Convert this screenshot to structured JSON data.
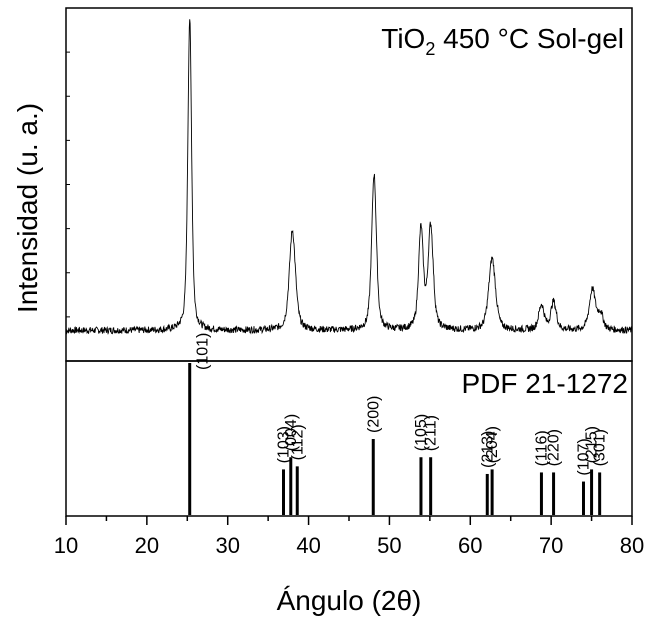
{
  "chart_data": {
    "type": "line",
    "xlabel": "Ángulo (2θ)",
    "ylabel": "Intensidad (u. a.)",
    "xlim": [
      10,
      80
    ],
    "x_ticks": [
      "10",
      "20",
      "30",
      "40",
      "50",
      "60",
      "70",
      "80"
    ],
    "grid": false,
    "top_panel": {
      "label_main": "TiO",
      "label_sub": "2",
      "label_rest": " 450 °C Sol-gel",
      "series": {
        "baseline": 0.05,
        "peaks": [
          {
            "x": 25.3,
            "height": 1.0,
            "width": 0.28
          },
          {
            "x": 38.0,
            "height": 0.32,
            "width": 0.45
          },
          {
            "x": 48.1,
            "height": 0.5,
            "width": 0.35
          },
          {
            "x": 53.9,
            "height": 0.32,
            "width": 0.35
          },
          {
            "x": 55.1,
            "height": 0.33,
            "width": 0.38
          },
          {
            "x": 62.7,
            "height": 0.23,
            "width": 0.5
          },
          {
            "x": 68.8,
            "height": 0.08,
            "width": 0.4
          },
          {
            "x": 70.3,
            "height": 0.09,
            "width": 0.4
          },
          {
            "x": 75.1,
            "height": 0.13,
            "width": 0.45
          },
          {
            "x": 76.1,
            "height": 0.05,
            "width": 0.4
          }
        ]
      }
    },
    "bottom_panel": {
      "label": "PDF 21-1272",
      "reflections": [
        {
          "hkl": "(101)",
          "x": 25.3,
          "intensity": 100
        },
        {
          "hkl": "(103)",
          "x": 36.9,
          "intensity": 30
        },
        {
          "hkl": "(004)",
          "x": 37.8,
          "intensity": 38
        },
        {
          "hkl": "(112)",
          "x": 38.6,
          "intensity": 32
        },
        {
          "hkl": "(200)",
          "x": 48.0,
          "intensity": 50
        },
        {
          "hkl": "(105)",
          "x": 53.9,
          "intensity": 38
        },
        {
          "hkl": "(211)",
          "x": 55.1,
          "intensity": 38
        },
        {
          "hkl": "(213)",
          "x": 62.1,
          "intensity": 27
        },
        {
          "hkl": "(204)",
          "x": 62.7,
          "intensity": 30
        },
        {
          "hkl": "(116)",
          "x": 68.8,
          "intensity": 28
        },
        {
          "hkl": "(220)",
          "x": 70.3,
          "intensity": 28
        },
        {
          "hkl": "(107)",
          "x": 74.0,
          "intensity": 22
        },
        {
          "hkl": "(215)",
          "x": 75.0,
          "intensity": 30
        },
        {
          "hkl": "(301)",
          "x": 76.0,
          "intensity": 28
        }
      ]
    }
  }
}
